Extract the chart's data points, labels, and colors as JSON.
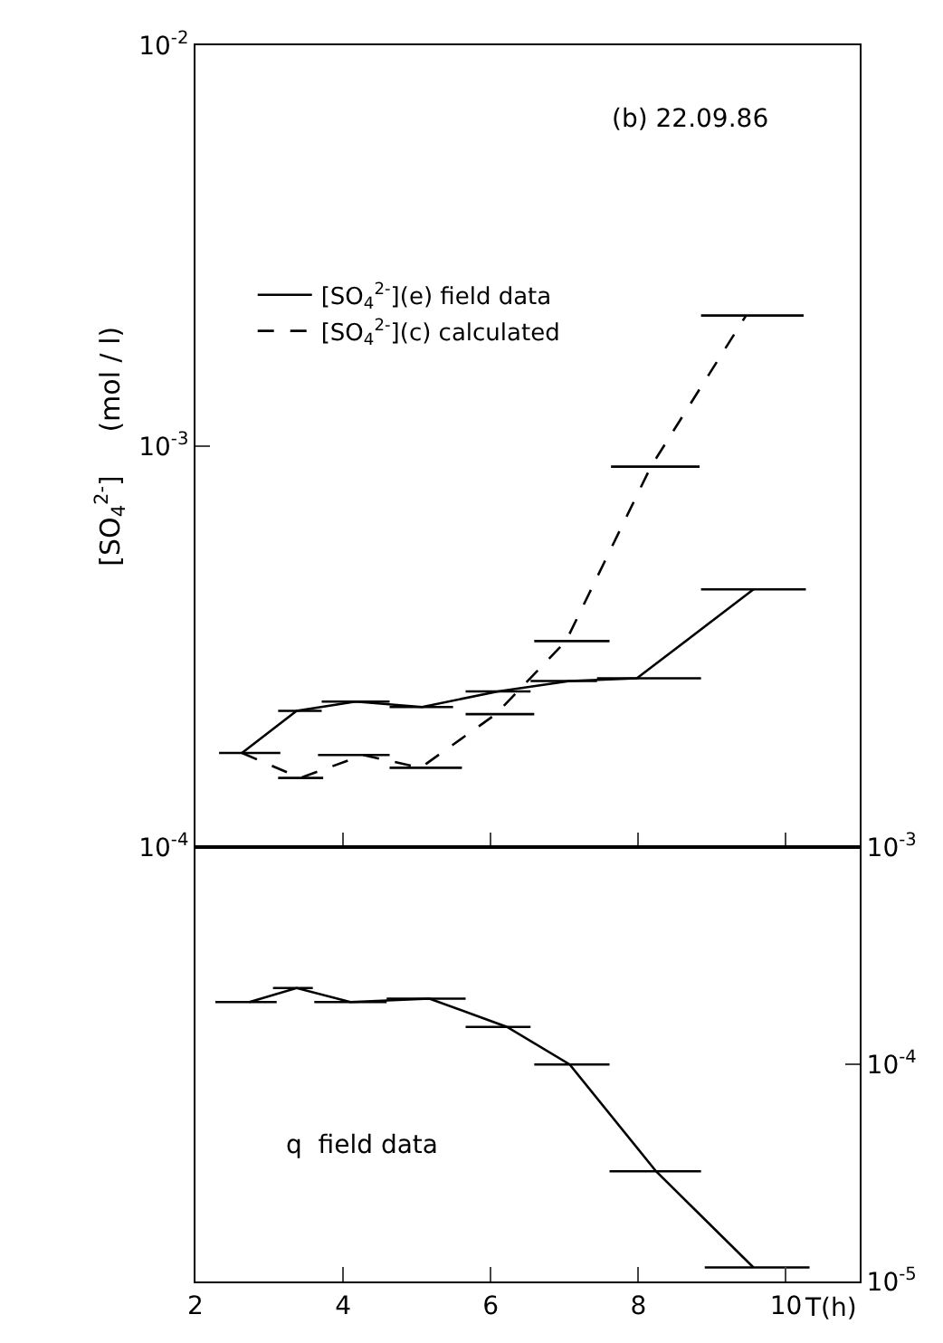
{
  "chart_data": [
    {
      "type": "line",
      "ylabel": "[SO$_{4}$$^{2-}$]     (mol / l)",
      "annotations": [
        "(b) 22.09.86"
      ],
      "log": "y",
      "xlim": [
        2,
        11
      ],
      "xticks": [
        {
          "value": 2,
          "label": null
        },
        {
          "value": 4,
          "label": null
        },
        {
          "value": 6,
          "label": null
        },
        {
          "value": 8,
          "label": null
        },
        {
          "value": 10,
          "label": null
        }
      ],
      "ylim": [
        0.0001,
        0.01
      ],
      "yticks": [
        {
          "value": 0.0001,
          "label": "10$^{-4}$"
        },
        {
          "value": 0.001,
          "label": "10$^{-3}$"
        },
        {
          "value": 0.01,
          "label": "10$^{-2}$"
        }
      ],
      "tick_labels": "y",
      "legend": "top left",
      "marker": "none",
      "grid": false,
      "series": [
        {
          "name": "[SO$_{4}$$^{2-}$](e) field data",
          "color": "#000000",
          "line_style": "solid",
          "x": [
            2.63,
            3.37,
            4.17,
            5.07,
            6.1,
            7.07,
            7.98,
            9.56
          ],
          "values": [
            0.000172,
            0.000219,
            0.000231,
            0.000224,
            0.000245,
            0.00026,
            0.000264,
            0.00044
          ],
          "xerrors": [
            [
              2.32,
              3.15
            ],
            [
              3.12,
              3.71
            ],
            [
              3.71,
              4.63
            ],
            [
              4.63,
              5.49
            ],
            [
              5.66,
              6.54
            ],
            [
              6.54,
              7.44
            ],
            [
              7.44,
              8.85
            ],
            [
              8.85,
              10.27
            ]
          ]
        },
        {
          "name": "[SO$_{4}$$^{2-}$](c) calculated",
          "color": "#000000",
          "line_style": "dashed",
          "x": [
            2.63,
            3.42,
            4.27,
            5.05,
            6.07,
            7.02,
            8.17,
            9.46
          ],
          "values": [
            0.000172,
            0.000149,
            0.00017,
            0.000158,
            0.000215,
            0.000327,
            0.00089,
            0.00212
          ],
          "xerrors": [
            null,
            [
              3.12,
              3.73
            ],
            [
              3.66,
              4.63
            ],
            [
              4.63,
              5.61
            ],
            [
              5.66,
              6.59
            ],
            [
              6.59,
              7.61
            ],
            [
              7.63,
              8.83
            ],
            [
              8.85,
              10.24
            ]
          ]
        }
      ]
    },
    {
      "type": "line",
      "xlabel": "T(h)",
      "annotations": [
        "q  field data"
      ],
      "log": "y2",
      "xlim": [
        2,
        11
      ],
      "xticks": [
        2,
        4,
        6,
        8,
        10
      ],
      "y2lim": [
        1e-05,
        0.001
      ],
      "y2ticks": [
        {
          "value": 1e-05,
          "label": "10$^{-5}$"
        },
        {
          "value": 0.0001,
          "label": "10$^{-4}$"
        },
        {
          "value": 0.001,
          "label": "10$^{-3}$"
        }
      ],
      "marker": "none",
      "grid": false,
      "series": [
        {
          "color": "#000000",
          "axis": "y2",
          "line_style": "solid",
          "x": [
            2.73,
            3.37,
            4.1,
            5.17,
            6.22,
            7.07,
            8.24,
            9.56
          ],
          "values": [
            0.000194,
            0.000225,
            0.000194,
            0.000201,
            0.000149,
            0.0001,
            3.22e-05,
            1.16e-05
          ],
          "xerrors": [
            [
              2.27,
              3.1
            ],
            [
              3.05,
              3.59
            ],
            [
              3.61,
              4.59
            ],
            [
              4.59,
              5.66
            ],
            [
              5.66,
              6.54
            ],
            [
              6.59,
              7.61
            ],
            [
              7.61,
              8.85
            ],
            [
              8.9,
              10.32
            ]
          ]
        }
      ]
    }
  ]
}
